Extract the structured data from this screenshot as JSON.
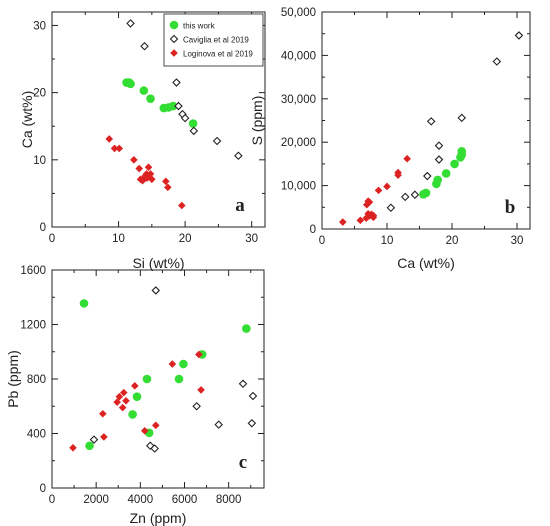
{
  "colors": {
    "this_work": "#33dd33",
    "caviglia": "#222222",
    "loginova": "#dd2222",
    "axis": "#222222"
  },
  "chart_data": [
    {
      "type": "scatter",
      "panel": "a",
      "xlabel": "Si (wt%)",
      "ylabel": "Ca (wt%)",
      "xlim": [
        0,
        32
      ],
      "ylim": [
        0,
        32
      ],
      "xticks": [
        "0",
        "10",
        "20",
        "30"
      ],
      "xtick_values": [
        0,
        10,
        20,
        30
      ],
      "yticks": [
        "0",
        "10",
        "20",
        "30"
      ],
      "ytick_values": [
        0,
        10,
        20,
        30
      ],
      "grid": false,
      "legend_position": "top-right",
      "legend": [
        {
          "label": "this work",
          "marker": "circle",
          "color": "#33dd33"
        },
        {
          "label": "Caviglia et al 2019",
          "marker": "open-diamond",
          "color": "#222222"
        },
        {
          "label": "Loginova et al 2019",
          "marker": "diamond",
          "color": "#dd2222"
        }
      ],
      "series": [
        {
          "name": "this work",
          "marker": "circle",
          "color": "#33dd33",
          "x": [
            11.2,
            11.8,
            13.8,
            14.8,
            16.8,
            17.5,
            18.2,
            21.2,
            11.6
          ],
          "y": [
            21.5,
            21.3,
            20.3,
            19.1,
            17.7,
            17.8,
            18.0,
            15.4,
            21.5
          ]
        },
        {
          "name": "Caviglia et al 2019",
          "marker": "open-diamond",
          "color": "#222222",
          "x": [
            11.8,
            13.9,
            18.7,
            19.0,
            19.6,
            20.0,
            21.3,
            24.8,
            28.0
          ],
          "y": [
            30.3,
            26.9,
            21.5,
            18.0,
            16.8,
            16.2,
            14.3,
            12.8,
            10.6
          ]
        },
        {
          "name": "Loginova et al 2019",
          "marker": "diamond",
          "color": "#dd2222",
          "x": [
            8.6,
            9.4,
            10.1,
            12.3,
            13.1,
            13.3,
            13.6,
            13.8,
            14.0,
            14.1,
            14.2,
            14.5,
            14.3,
            14.8,
            15.0,
            17.1,
            17.4,
            19.5
          ],
          "y": [
            13.1,
            11.7,
            11.7,
            10.0,
            8.7,
            7.1,
            6.9,
            7.2,
            7.6,
            7.3,
            7.9,
            8.9,
            7.3,
            7.9,
            7.1,
            6.8,
            5.9,
            3.2
          ]
        }
      ],
      "annotation": "a"
    },
    {
      "type": "scatter",
      "panel": "b",
      "xlabel": "Ca (wt%)",
      "ylabel": "S (ppm)",
      "xlim": [
        0,
        32
      ],
      "ylim": [
        0,
        50000
      ],
      "xticks": [
        "0",
        "10",
        "20",
        "30"
      ],
      "xtick_values": [
        0,
        10,
        20,
        30
      ],
      "yticks": [
        "0",
        "10,000",
        "20,000",
        "30,000",
        "40,000",
        "50,000"
      ],
      "ytick_values": [
        0,
        10000,
        20000,
        30000,
        40000,
        50000
      ],
      "grid": false,
      "series": [
        {
          "name": "this work",
          "marker": "circle",
          "color": "#33dd33",
          "x": [
            15.6,
            16.0,
            17.6,
            17.8,
            19.1,
            20.4,
            21.3,
            21.5,
            21.5
          ],
          "y": [
            8000,
            8300,
            10400,
            11300,
            12800,
            15000,
            16500,
            17100,
            17900
          ]
        },
        {
          "name": "Caviglia et al 2019",
          "marker": "open-diamond",
          "color": "#222222",
          "x": [
            10.6,
            12.8,
            14.3,
            16.2,
            16.8,
            18.0,
            18.0,
            21.5,
            26.9,
            30.3
          ],
          "y": [
            4900,
            7400,
            7900,
            12200,
            24800,
            16000,
            19200,
            25600,
            38600,
            44600
          ]
        },
        {
          "name": "Loginova et al 2019",
          "marker": "diamond",
          "color": "#dd2222",
          "x": [
            3.2,
            5.9,
            6.8,
            7.1,
            7.3,
            7.3,
            7.6,
            7.9,
            7.9,
            6.9,
            7.1,
            8.7,
            10.0,
            11.7,
            11.7,
            13.1
          ],
          "y": [
            1600,
            2000,
            2500,
            3500,
            3000,
            6200,
            3400,
            3100,
            2700,
            5600,
            6400,
            8900,
            9800,
            12400,
            13000,
            16200
          ]
        }
      ],
      "annotation": "b"
    },
    {
      "type": "scatter",
      "panel": "c",
      "xlabel": "Zn (ppm)",
      "ylabel": "Pb (ppm)",
      "xlim": [
        0,
        9600
      ],
      "ylim": [
        0,
        1600
      ],
      "xticks": [
        "0",
        "2000",
        "4000",
        "6000",
        "8000"
      ],
      "xtick_values": [
        0,
        2000,
        4000,
        6000,
        8000
      ],
      "yticks": [
        "0",
        "400",
        "800",
        "1200",
        "1600"
      ],
      "ytick_values": [
        0,
        400,
        800,
        1200,
        1600
      ],
      "grid": false,
      "series": [
        {
          "name": "this work",
          "marker": "circle",
          "color": "#33dd33",
          "x": [
            1450,
            1700,
            3650,
            3850,
            4300,
            4400,
            5750,
            5950,
            6800,
            8800
          ],
          "y": [
            1355,
            310,
            540,
            670,
            800,
            405,
            800,
            910,
            980,
            1170
          ]
        },
        {
          "name": "Caviglia et al 2019",
          "marker": "open-diamond",
          "color": "#222222",
          "x": [
            1900,
            4450,
            4650,
            4700,
            6550,
            7550,
            8650,
            9050,
            9100
          ],
          "y": [
            355,
            310,
            290,
            1450,
            600,
            465,
            765,
            475,
            675
          ]
        },
        {
          "name": "Loginova et al 2019",
          "marker": "diamond",
          "color": "#dd2222",
          "x": [
            950,
            2350,
            2300,
            2950,
            3050,
            3200,
            3350,
            3250,
            3750,
            4200,
            4700,
            5450,
            6650,
            6750
          ],
          "y": [
            295,
            375,
            545,
            630,
            670,
            590,
            640,
            700,
            750,
            420,
            460,
            910,
            980,
            720
          ]
        }
      ],
      "annotation": "c"
    }
  ]
}
